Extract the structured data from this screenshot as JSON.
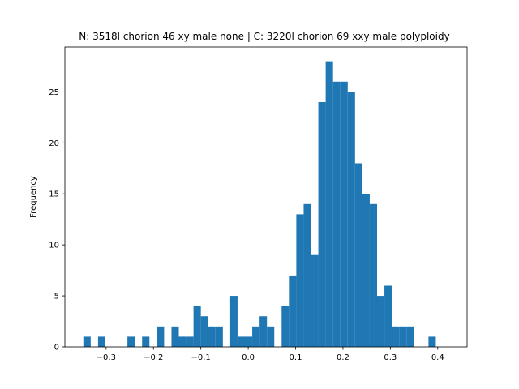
{
  "chart_data": {
    "type": "bar",
    "title": "N: 3518l chorion 46 xy male none | C: 3220l chorion 69 xxy male polyploidy",
    "xlabel": "",
    "ylabel": "Frequency",
    "xlim": [
      -0.387,
      0.462
    ],
    "ylim": [
      0,
      29.4
    ],
    "xticks": [
      -0.3,
      -0.2,
      -0.1,
      0.0,
      0.1,
      0.2,
      0.3,
      0.4
    ],
    "xtick_labels": [
      "−0.3",
      "−0.2",
      "−0.1",
      "0.0",
      "0.1",
      "0.2",
      "0.3",
      "0.4"
    ],
    "yticks": [
      0,
      5,
      10,
      15,
      20,
      25
    ],
    "ytick_labels": [
      "0",
      "5",
      "10",
      "15",
      "20",
      "25"
    ],
    "grid": false,
    "color": "#1f77b4",
    "bin_start": -0.348,
    "bin_width": 0.0155,
    "counts": [
      1,
      0,
      1,
      0,
      0,
      0,
      1,
      0,
      1,
      0,
      2,
      0,
      2,
      1,
      1,
      4,
      3,
      2,
      2,
      0,
      5,
      1,
      1,
      2,
      3,
      2,
      0,
      4,
      7,
      13,
      14,
      9,
      24,
      28,
      26,
      26,
      25,
      18,
      15,
      14,
      5,
      6,
      2,
      2,
      2,
      0,
      0,
      1
    ]
  }
}
